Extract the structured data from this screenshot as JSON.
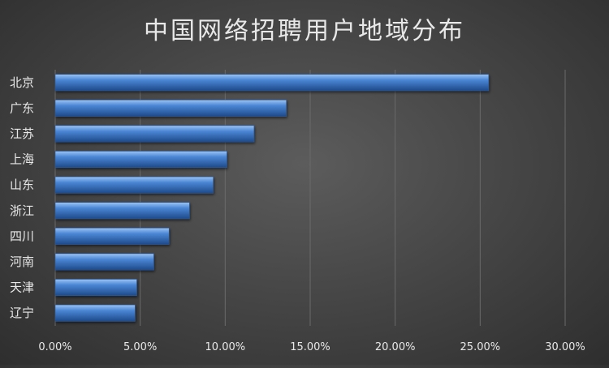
{
  "chart_data": {
    "type": "bar",
    "orientation": "horizontal",
    "title": "中国网络招聘用户地域分布",
    "categories": [
      "北京",
      "广东",
      "江苏",
      "上海",
      "山东",
      "浙江",
      "四川",
      "河南",
      "天津",
      "辽宁"
    ],
    "values": [
      25.5,
      13.6,
      11.7,
      10.1,
      9.3,
      7.9,
      6.7,
      5.8,
      4.8,
      4.7
    ],
    "xlim": [
      0,
      30
    ],
    "xticks": [
      "0.00%",
      "5.00%",
      "10.00%",
      "15.00%",
      "20.00%",
      "25.00%",
      "30.00%"
    ],
    "grid": true,
    "legend": "none",
    "bar_color": "#4a86d4",
    "bar_highlight": "#9cc4f5",
    "bar_shadow": "#1e4a8a",
    "grid_color": "#6a6a6a",
    "text_color": "#e8e8e8",
    "background_color": "#474747"
  }
}
